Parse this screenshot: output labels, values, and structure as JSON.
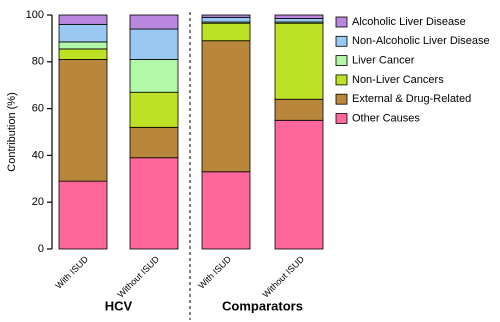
{
  "chart_data": {
    "type": "stacked-bar",
    "y_label": "Contribution (%)",
    "categories": [
      "With ISUD",
      "Without ISUD",
      "With ISUD",
      "Without ISUD"
    ],
    "groups": [
      "HCV",
      "Comparators"
    ],
    "ylim": [
      0,
      100
    ],
    "yticks": [
      0,
      20,
      40,
      60,
      80,
      100
    ],
    "series": [
      {
        "name": "Other Causes",
        "color": "#ff6699",
        "values": [
          29,
          39,
          33,
          55
        ]
      },
      {
        "name": "External & Drug-Related",
        "color": "#b8873c",
        "values": [
          52,
          13,
          56,
          9
        ]
      },
      {
        "name": "Non-Liver Cancers",
        "color": "#bde124",
        "values": [
          4.5,
          15,
          7.5,
          32.5
        ]
      },
      {
        "name": "Liver Cancer",
        "color": "#b3f7a8",
        "values": [
          3,
          14,
          0.5,
          0.5
        ]
      },
      {
        "name": "Non-Alcoholic Liver Disease",
        "color": "#99c9f2",
        "values": [
          7.5,
          13,
          2,
          1.5
        ]
      },
      {
        "name": "Alcoholic Liver Disease",
        "color": "#b987de",
        "values": [
          4,
          6,
          1,
          1.5
        ]
      }
    ]
  }
}
